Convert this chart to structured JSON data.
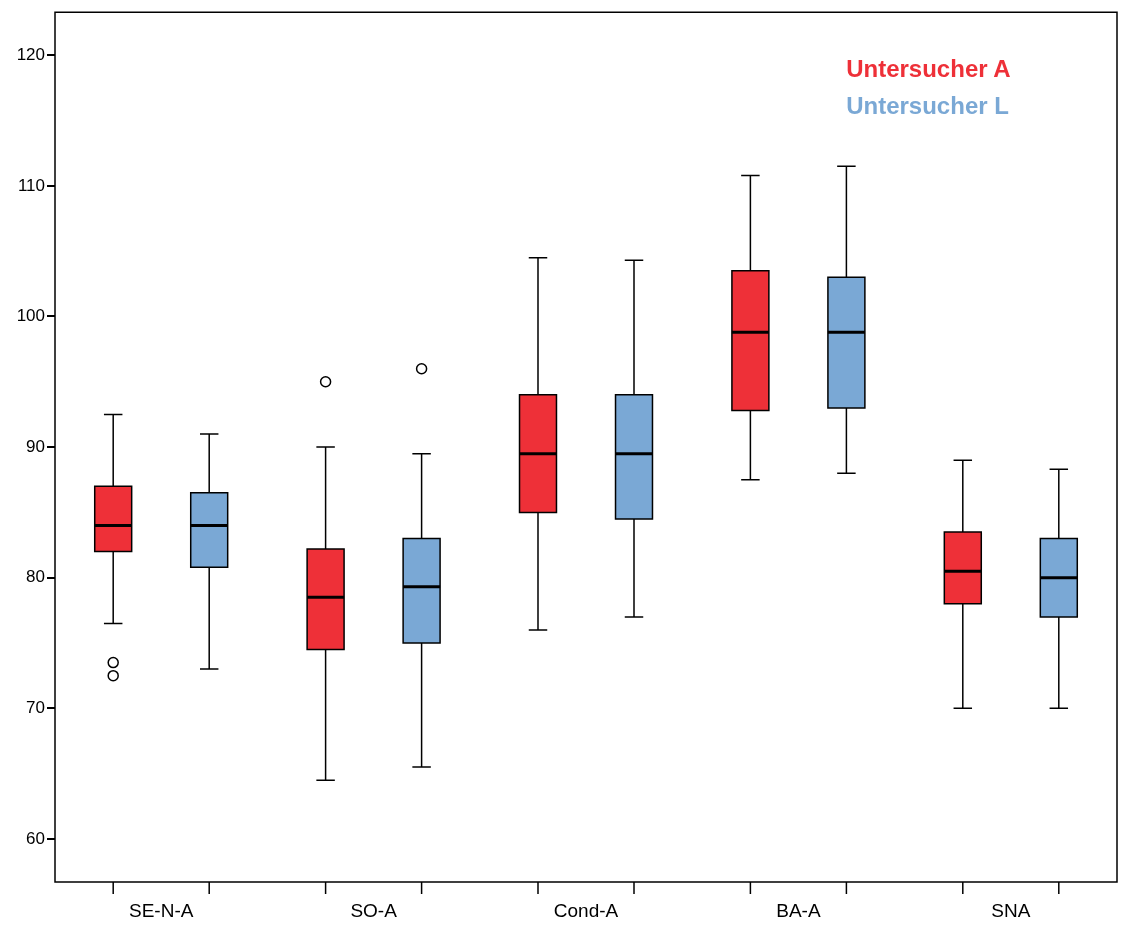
{
  "chart_data": {
    "type": "box",
    "categories": [
      "SE-N-A",
      "SO-A",
      "Cond-A",
      "BA-A",
      "SNA"
    ],
    "ylim": [
      56.7,
      123.3
    ],
    "yticks": [
      60,
      70,
      80,
      90,
      100,
      110,
      120
    ],
    "grid": false,
    "legend": "top right",
    "series": [
      {
        "name": "Untersucher A",
        "color": "#ee3038",
        "boxes": [
          {
            "low": 76.5,
            "q1": 82.0,
            "median": 84.0,
            "q3": 87.0,
            "high": 92.5,
            "outliers": [
              73.5,
              72.5
            ]
          },
          {
            "low": 64.5,
            "q1": 74.5,
            "median": 78.5,
            "q3": 82.2,
            "high": 90.0,
            "outliers": [
              95.0
            ]
          },
          {
            "low": 76.0,
            "q1": 85.0,
            "median": 89.5,
            "q3": 94.0,
            "high": 104.5
          },
          {
            "low": 87.5,
            "q1": 92.8,
            "median": 98.8,
            "q3": 103.5,
            "high": 110.8
          },
          {
            "low": 70.0,
            "q1": 78.0,
            "median": 80.5,
            "q3": 83.5,
            "high": 89.0
          }
        ]
      },
      {
        "name": "Untersucher L",
        "color": "#7aa8d5",
        "boxes": [
          {
            "low": 73.0,
            "q1": 80.8,
            "median": 84.0,
            "q3": 86.5,
            "high": 91.0
          },
          {
            "low": 65.5,
            "q1": 75.0,
            "median": 79.3,
            "q3": 83.0,
            "high": 89.5,
            "outliers": [
              96.0
            ]
          },
          {
            "low": 77.0,
            "q1": 84.5,
            "median": 89.5,
            "q3": 94.0,
            "high": 104.3
          },
          {
            "low": 88.0,
            "q1": 93.0,
            "median": 98.8,
            "q3": 103.0,
            "high": 111.5
          },
          {
            "low": 70.0,
            "q1": 77.0,
            "median": 80.0,
            "q3": 83.0,
            "high": 88.3
          }
        ]
      }
    ]
  }
}
